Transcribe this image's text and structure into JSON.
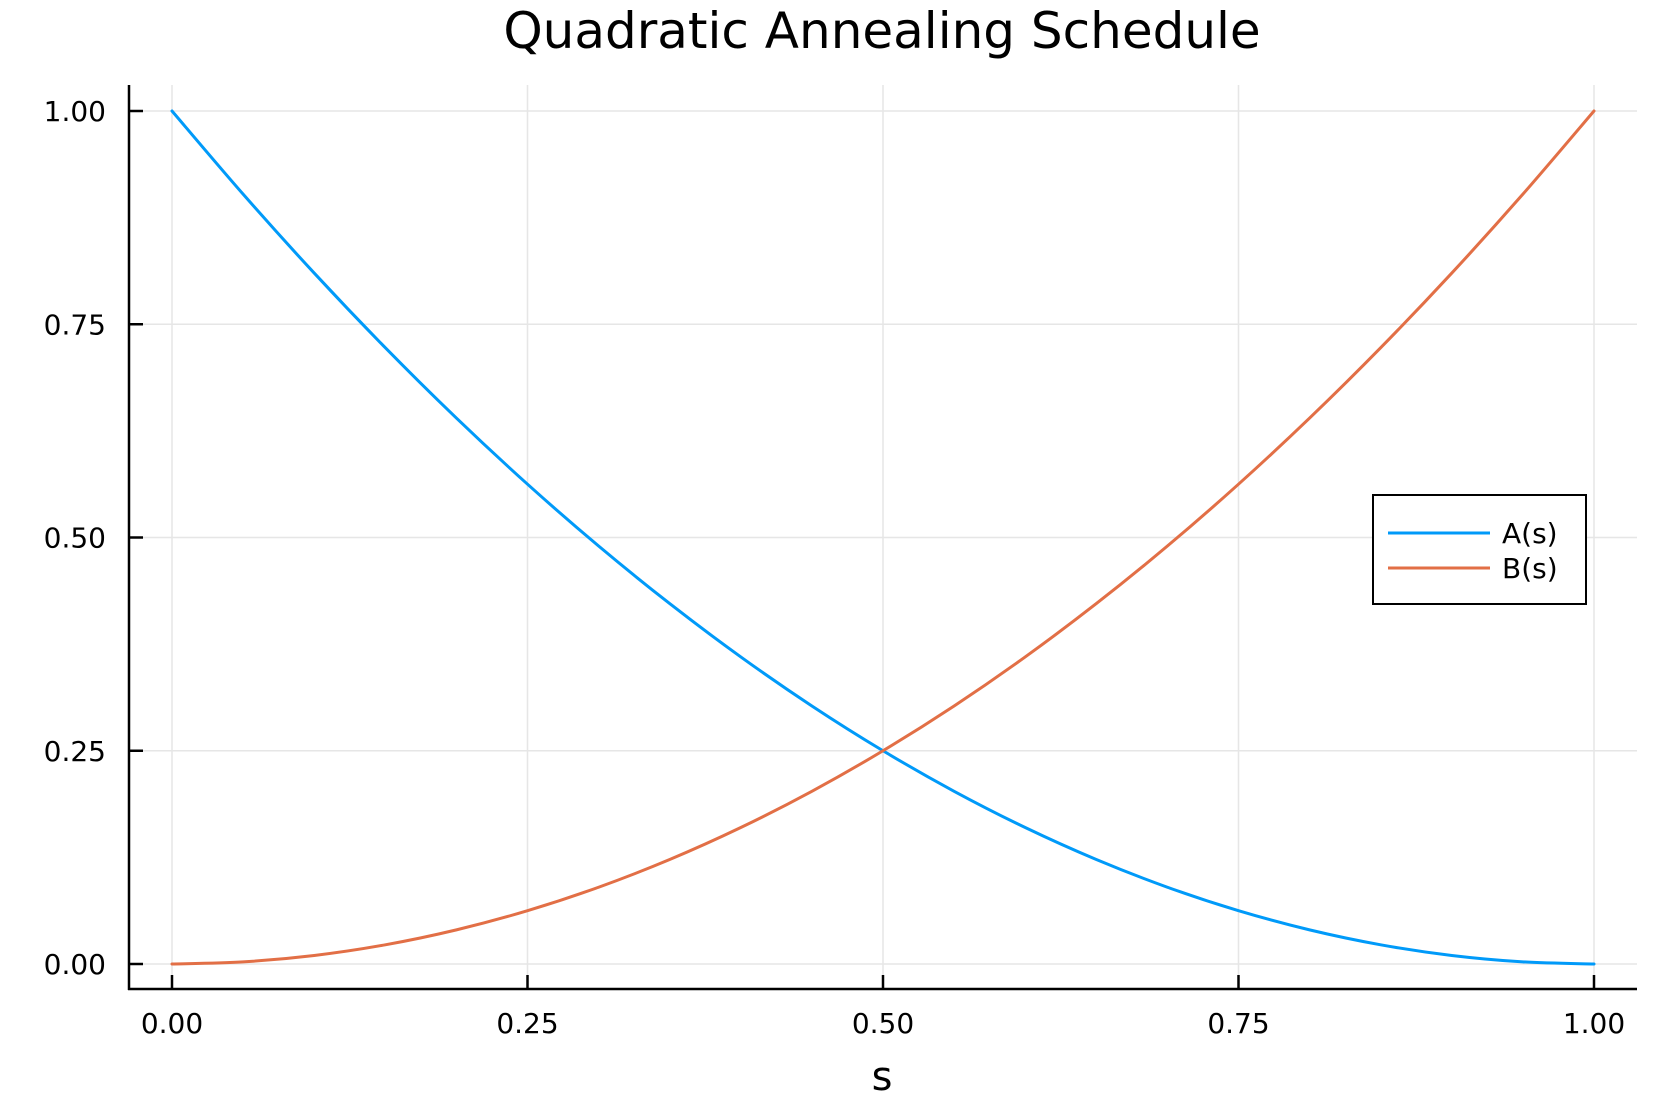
{
  "chart_data": {
    "type": "line",
    "title": "Quadratic Annealing Schedule",
    "xlabel": "s",
    "ylabel": "",
    "xlim": [
      0,
      1
    ],
    "ylim": [
      0,
      1
    ],
    "grid": true,
    "legend_position": "right",
    "x_ticks": [
      0,
      0.25,
      0.5,
      0.75,
      1
    ],
    "x_tick_labels": [
      "0.00",
      "0.25",
      "0.50",
      "0.75",
      "1.00"
    ],
    "y_ticks": [
      0,
      0.25,
      0.5,
      0.75,
      1
    ],
    "y_tick_labels": [
      "0.00",
      "0.25",
      "0.50",
      "0.75",
      "1.00"
    ],
    "x": [
      0,
      0.05,
      0.1,
      0.15,
      0.2,
      0.25,
      0.3,
      0.35,
      0.4,
      0.45,
      0.5,
      0.55,
      0.6,
      0.65,
      0.7,
      0.75,
      0.8,
      0.85,
      0.9,
      0.95,
      1
    ],
    "series": [
      {
        "name": "A(s)",
        "color": "#009af9",
        "values": [
          1,
          0.9025,
          0.81,
          0.7225,
          0.64,
          0.5625,
          0.49,
          0.4225,
          0.36,
          0.3025,
          0.25,
          0.2025,
          0.16,
          0.1225,
          0.09,
          0.0625,
          0.04,
          0.0225,
          0.01,
          0.0025,
          0
        ]
      },
      {
        "name": "B(s)",
        "color": "#e26f46",
        "values": [
          0,
          0.0025,
          0.01,
          0.0225,
          0.04,
          0.0625,
          0.09,
          0.1225,
          0.16,
          0.2025,
          0.25,
          0.3025,
          0.36,
          0.4225,
          0.49,
          0.5625,
          0.64,
          0.7225,
          0.81,
          0.9025,
          1
        ]
      }
    ]
  }
}
